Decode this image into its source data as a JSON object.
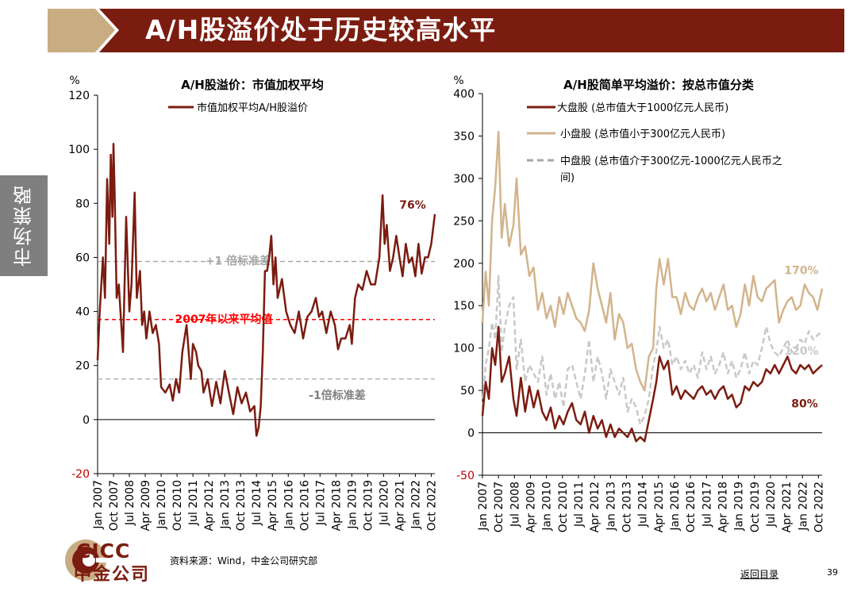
{
  "header": {
    "title": "A/H股溢价处于历史较高水平"
  },
  "side_tab": {
    "label": "市场策略"
  },
  "footer": {
    "source": "资料来源：Wind，中金公司研究部",
    "back_link": "返回目录",
    "page_number": "39"
  },
  "logo": {
    "en": "CICC",
    "zh": "中金公司"
  },
  "colors": {
    "brand": "#7b1c10",
    "header_bg": "#7b1c10",
    "header_accent": "#c9ad82",
    "red": "#c00000",
    "tan": "#d2b48c",
    "lightgray": "#c8c8c8",
    "gray": "#a6a6a6"
  },
  "chart_data": [
    {
      "type": "line",
      "title": "A/H股溢价：市值加权平均",
      "ylabel": "%",
      "ylim": [
        -20,
        120
      ],
      "yticks": [
        "120",
        "100",
        "80",
        "60",
        "40",
        "20",
        "0",
        "-20"
      ],
      "ytick_values": [
        120,
        100,
        80,
        60,
        40,
        20,
        0,
        -20
      ],
      "x_range": [
        2007.0,
        2022.92
      ],
      "xticks": [
        "Jan 2007",
        "Oct 2007",
        "Jul 2008",
        "Apr 2009",
        "Jan 2010",
        "Oct 2010",
        "Jul 2011",
        "Apr 2012",
        "Jan 2013",
        "Oct 2013",
        "Jul 2014",
        "Apr 2015",
        "Jan 2016",
        "Oct 2016",
        "Jul 2017",
        "Apr 2018",
        "Jan 2019",
        "Oct 2019",
        "Jul 2020",
        "Apr 2021",
        "Jan 2022",
        "Oct 2022"
      ],
      "xtick_values": [
        2007.0,
        2007.75,
        2008.5,
        2009.25,
        2010.0,
        2010.75,
        2011.5,
        2012.25,
        2013.0,
        2013.75,
        2014.5,
        2015.25,
        2016.0,
        2016.75,
        2017.5,
        2018.25,
        2019.0,
        2019.75,
        2020.5,
        2021.25,
        2022.0,
        2022.75
      ],
      "legend": "市值加权平均A/H股溢价",
      "reference_lines": [
        {
          "label": "+1 倍标准差",
          "value": 58.5,
          "style": "gray-dashed"
        },
        {
          "label": "2007年以来平均值",
          "value": 37,
          "style": "red-dashed"
        },
        {
          "label": "-1倍标准差",
          "value": 15,
          "style": "gray-dashed"
        }
      ],
      "end_label": "76%",
      "series": [
        {
          "name": "市值加权平均A/H股溢价",
          "x": [
            2007.0,
            2007.1,
            2007.25,
            2007.35,
            2007.45,
            2007.55,
            2007.62,
            2007.7,
            2007.75,
            2007.8,
            2007.9,
            2008.0,
            2008.2,
            2008.35,
            2008.5,
            2008.6,
            2008.75,
            2008.85,
            2009.0,
            2009.1,
            2009.2,
            2009.3,
            2009.45,
            2009.6,
            2009.75,
            2009.9,
            2010.0,
            2010.2,
            2010.4,
            2010.55,
            2010.7,
            2010.85,
            2011.0,
            2011.2,
            2011.4,
            2011.5,
            2011.65,
            2011.75,
            2011.9,
            2012.0,
            2012.2,
            2012.4,
            2012.6,
            2012.8,
            2013.0,
            2013.2,
            2013.4,
            2013.6,
            2013.8,
            2014.0,
            2014.2,
            2014.4,
            2014.5,
            2014.6,
            2014.7,
            2014.8,
            2014.9,
            2015.0,
            2015.1,
            2015.2,
            2015.3,
            2015.4,
            2015.5,
            2015.7,
            2015.9,
            2016.1,
            2016.3,
            2016.5,
            2016.7,
            2016.9,
            2017.1,
            2017.3,
            2017.45,
            2017.6,
            2017.8,
            2018.0,
            2018.2,
            2018.35,
            2018.5,
            2018.7,
            2018.9,
            2019.0,
            2019.15,
            2019.3,
            2019.5,
            2019.7,
            2019.9,
            2020.1,
            2020.3,
            2020.45,
            2020.55,
            2020.65,
            2020.8,
            2020.95,
            2021.1,
            2021.25,
            2021.4,
            2021.55,
            2021.7,
            2021.85,
            2022.0,
            2022.15,
            2022.3,
            2022.45,
            2022.6,
            2022.75,
            2022.92
          ],
          "values": [
            22,
            40,
            60,
            45,
            89,
            65,
            98,
            75,
            102,
            85,
            45,
            50,
            25,
            75,
            40,
            50,
            84,
            45,
            55,
            35,
            40,
            30,
            40,
            32,
            35,
            28,
            12,
            10,
            13,
            7,
            15,
            10,
            25,
            35,
            15,
            28,
            25,
            20,
            18,
            10,
            15,
            5,
            14,
            6,
            18,
            10,
            2,
            12,
            6,
            10,
            3,
            5,
            -6,
            -3,
            5,
            25,
            55,
            55,
            60,
            68,
            50,
            60,
            45,
            52,
            40,
            35,
            32,
            40,
            30,
            38,
            40,
            45,
            38,
            40,
            32,
            40,
            35,
            26,
            30,
            30,
            35,
            28,
            45,
            50,
            48,
            55,
            50,
            50,
            60,
            83,
            65,
            72,
            55,
            60,
            68,
            60,
            53,
            65,
            58,
            60,
            53,
            65,
            54,
            60,
            60,
            65,
            76
          ]
        }
      ]
    },
    {
      "type": "line",
      "title": "A/H股简单平均溢价：按总市值分类",
      "ylabel": "%",
      "ylim": [
        -50,
        400
      ],
      "yticks": [
        "400",
        "350",
        "300",
        "250",
        "200",
        "150",
        "100",
        "50",
        "0",
        "-50"
      ],
      "ytick_values": [
        400,
        350,
        300,
        250,
        200,
        150,
        100,
        50,
        0,
        -50
      ],
      "x_range": [
        2007.0,
        2022.92
      ],
      "xticks": [
        "Jan 2007",
        "Oct 2007",
        "Jul 2008",
        "Apr 2009",
        "Jan 2010",
        "Oct 2010",
        "Jul 2011",
        "Apr 2012",
        "Jan 2013",
        "Oct 2013",
        "Jul 2014",
        "Apr 2015",
        "Jan 2016",
        "Oct 2016",
        "Jul 2017",
        "Apr 2018",
        "Jan 2019",
        "Oct 2019",
        "Jul 2020",
        "Apr 2021",
        "Jan 2022",
        "Oct 2022"
      ],
      "xtick_values": [
        2007.0,
        2007.75,
        2008.5,
        2009.25,
        2010.0,
        2010.75,
        2011.5,
        2012.25,
        2013.0,
        2013.75,
        2014.5,
        2015.25,
        2016.0,
        2016.75,
        2017.5,
        2018.25,
        2019.0,
        2019.75,
        2020.5,
        2021.25,
        2022.0,
        2022.75
      ],
      "end_labels": {
        "large": "80%",
        "small": "170%",
        "mid": "120%"
      },
      "series": [
        {
          "name": "小盘股 (总市值小于300亿元人民币)",
          "legend": "小盘股 (总市值小于300亿元人民币)",
          "x": [
            2007.0,
            2007.15,
            2007.3,
            2007.45,
            2007.6,
            2007.75,
            2007.9,
            2008.05,
            2008.25,
            2008.45,
            2008.6,
            2008.8,
            2009.0,
            2009.2,
            2009.4,
            2009.6,
            2009.8,
            2010.0,
            2010.2,
            2010.4,
            2010.6,
            2010.8,
            2011.0,
            2011.2,
            2011.4,
            2011.6,
            2011.8,
            2012.0,
            2012.2,
            2012.4,
            2012.6,
            2012.8,
            2013.0,
            2013.2,
            2013.4,
            2013.6,
            2013.8,
            2014.0,
            2014.2,
            2014.4,
            2014.6,
            2014.8,
            2015.0,
            2015.15,
            2015.3,
            2015.5,
            2015.7,
            2015.9,
            2016.1,
            2016.3,
            2016.5,
            2016.7,
            2016.9,
            2017.1,
            2017.3,
            2017.5,
            2017.7,
            2017.9,
            2018.1,
            2018.3,
            2018.5,
            2018.7,
            2018.9,
            2019.1,
            2019.3,
            2019.5,
            2019.7,
            2019.9,
            2020.1,
            2020.3,
            2020.5,
            2020.7,
            2020.9,
            2021.1,
            2021.3,
            2021.5,
            2021.7,
            2021.9,
            2022.1,
            2022.3,
            2022.5,
            2022.7,
            2022.92
          ],
          "values": [
            130,
            190,
            150,
            250,
            290,
            355,
            230,
            270,
            220,
            245,
            300,
            210,
            220,
            185,
            195,
            145,
            165,
            135,
            150,
            125,
            160,
            140,
            165,
            150,
            135,
            130,
            120,
            145,
            200,
            170,
            150,
            130,
            165,
            110,
            140,
            130,
            100,
            105,
            75,
            60,
            50,
            90,
            100,
            170,
            205,
            175,
            205,
            160,
            160,
            140,
            165,
            150,
            145,
            160,
            170,
            155,
            165,
            145,
            160,
            175,
            145,
            150,
            125,
            140,
            175,
            150,
            185,
            160,
            155,
            170,
            175,
            180,
            130,
            145,
            155,
            160,
            145,
            150,
            175,
            165,
            160,
            145,
            170
          ]
        },
        {
          "name": "中盘股 (总市值介于300亿元-1000亿元人民币之间)",
          "legend": "中盘股 (总市值介于300亿元-1000亿元人民币之",
          "legend_line2": "间)",
          "x": [
            2007.0,
            2007.15,
            2007.3,
            2007.45,
            2007.6,
            2007.75,
            2007.9,
            2008.05,
            2008.25,
            2008.45,
            2008.6,
            2008.8,
            2009.0,
            2009.2,
            2009.4,
            2009.6,
            2009.8,
            2010.0,
            2010.2,
            2010.4,
            2010.6,
            2010.8,
            2011.0,
            2011.2,
            2011.4,
            2011.6,
            2011.8,
            2012.0,
            2012.2,
            2012.4,
            2012.6,
            2012.8,
            2013.0,
            2013.2,
            2013.4,
            2013.6,
            2013.8,
            2014.0,
            2014.2,
            2014.4,
            2014.6,
            2014.8,
            2015.0,
            2015.15,
            2015.3,
            2015.5,
            2015.7,
            2015.9,
            2016.1,
            2016.3,
            2016.5,
            2016.7,
            2016.9,
            2017.1,
            2017.3,
            2017.5,
            2017.7,
            2017.9,
            2018.1,
            2018.3,
            2018.5,
            2018.7,
            2018.9,
            2019.1,
            2019.3,
            2019.5,
            2019.7,
            2019.9,
            2020.1,
            2020.3,
            2020.5,
            2020.7,
            2020.9,
            2021.1,
            2021.3,
            2021.5,
            2021.7,
            2021.9,
            2022.1,
            2022.3,
            2022.5,
            2022.7,
            2022.92
          ],
          "values": [
            30,
            80,
            100,
            130,
            110,
            185,
            95,
            125,
            150,
            160,
            75,
            110,
            60,
            80,
            70,
            60,
            90,
            45,
            70,
            40,
            60,
            30,
            75,
            80,
            60,
            40,
            70,
            110,
            60,
            90,
            70,
            40,
            75,
            60,
            45,
            65,
            25,
            40,
            30,
            10,
            20,
            40,
            80,
            95,
            125,
            100,
            110,
            80,
            90,
            75,
            85,
            70,
            80,
            65,
            95,
            75,
            90,
            70,
            80,
            95,
            70,
            85,
            65,
            75,
            95,
            70,
            85,
            80,
            100,
            125,
            105,
            95,
            90,
            100,
            110,
            95,
            100,
            110,
            105,
            120,
            110,
            115,
            120
          ]
        },
        {
          "name": "大盘股 (总市值大于1000亿元人民币)",
          "legend": "大盘股 (总市值大于1000亿元人民币)",
          "x": [
            2007.0,
            2007.15,
            2007.3,
            2007.45,
            2007.6,
            2007.75,
            2007.9,
            2008.05,
            2008.25,
            2008.45,
            2008.6,
            2008.8,
            2009.0,
            2009.2,
            2009.4,
            2009.6,
            2009.8,
            2010.0,
            2010.2,
            2010.4,
            2010.6,
            2010.8,
            2011.0,
            2011.2,
            2011.4,
            2011.6,
            2011.8,
            2012.0,
            2012.2,
            2012.4,
            2012.6,
            2012.8,
            2013.0,
            2013.2,
            2013.4,
            2013.6,
            2013.8,
            2014.0,
            2014.2,
            2014.4,
            2014.6,
            2014.8,
            2015.0,
            2015.15,
            2015.3,
            2015.5,
            2015.7,
            2015.9,
            2016.1,
            2016.3,
            2016.5,
            2016.7,
            2016.9,
            2017.1,
            2017.3,
            2017.5,
            2017.7,
            2017.9,
            2018.1,
            2018.3,
            2018.5,
            2018.7,
            2018.9,
            2019.1,
            2019.3,
            2019.5,
            2019.7,
            2019.9,
            2020.1,
            2020.3,
            2020.5,
            2020.7,
            2020.9,
            2021.1,
            2021.3,
            2021.5,
            2021.7,
            2021.9,
            2022.1,
            2022.3,
            2022.5,
            2022.7,
            2022.92
          ],
          "values": [
            20,
            60,
            40,
            100,
            80,
            125,
            60,
            70,
            90,
            40,
            20,
            65,
            25,
            55,
            30,
            50,
            25,
            15,
            30,
            5,
            20,
            10,
            25,
            35,
            15,
            10,
            25,
            0,
            20,
            5,
            15,
            -5,
            10,
            -5,
            5,
            0,
            -5,
            5,
            -10,
            -5,
            -10,
            15,
            40,
            60,
            90,
            75,
            85,
            45,
            55,
            40,
            50,
            45,
            40,
            50,
            55,
            45,
            50,
            40,
            50,
            55,
            40,
            45,
            30,
            35,
            55,
            50,
            60,
            55,
            60,
            75,
            70,
            80,
            70,
            80,
            90,
            75,
            70,
            80,
            75,
            80,
            70,
            75,
            80
          ]
        }
      ]
    }
  ]
}
